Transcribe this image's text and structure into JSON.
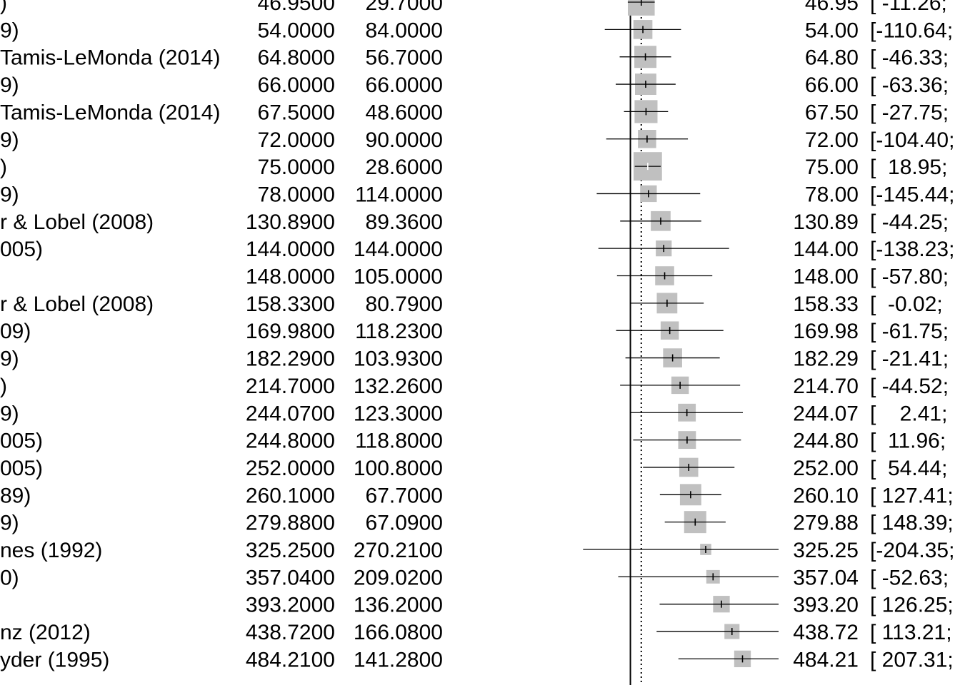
{
  "chart_data": {
    "type": "forest",
    "title": "",
    "xlabel": "",
    "ylabel": "",
    "xlim": [
      -230,
      640
    ],
    "reference_line": 0,
    "summary_line": 47,
    "colors": {
      "box": "#c0c0c0",
      "line": "#000000",
      "text": "#000000"
    },
    "rows": [
      {
        "study": ")",
        "mean": "46.9500",
        "sd": "29.7000",
        "est_label": "46.95",
        "ci_label": "[ -11.26;",
        "est": 46.95,
        "lo": -11.26,
        "hi": 105.16,
        "w": 1.3
      },
      {
        "study": "9)",
        "mean": "54.0000",
        "sd": "84.0000",
        "est_label": "54.00",
        "ci_label": "[-110.64;",
        "est": 54.0,
        "lo": -110.64,
        "hi": 218.64,
        "w": 0.8
      },
      {
        "study": "Tamis-LeMonda (2014)",
        "mean": "64.8000",
        "sd": "56.7000",
        "est_label": "64.80",
        "ci_label": "[ -46.33;",
        "est": 64.8,
        "lo": -46.33,
        "hi": 175.93,
        "w": 1.0
      },
      {
        "study": "9)",
        "mean": "66.0000",
        "sd": "66.0000",
        "est_label": "66.00",
        "ci_label": "[ -63.36;",
        "est": 66.0,
        "lo": -63.36,
        "hi": 195.36,
        "w": 0.95
      },
      {
        "study": "Tamis-LeMonda (2014)",
        "mean": "67.5000",
        "sd": "48.6000",
        "est_label": "67.50",
        "ci_label": "[ -27.75;",
        "est": 67.5,
        "lo": -27.75,
        "hi": 162.75,
        "w": 1.05
      },
      {
        "study": "9)",
        "mean": "72.0000",
        "sd": "90.0000",
        "est_label": "72.00",
        "ci_label": "[-104.40;",
        "est": 72.0,
        "lo": -104.4,
        "hi": 248.4,
        "w": 0.75
      },
      {
        "study": ")",
        "mean": "75.0000",
        "sd": "28.6000",
        "est_label": "75.00",
        "ci_label": "[  18.95;",
        "est": 75.0,
        "lo": 18.95,
        "hi": 131.05,
        "w": 1.4
      },
      {
        "study": "9)",
        "mean": "78.0000",
        "sd": "114.0000",
        "est_label": "78.00",
        "ci_label": "[-145.44;",
        "est": 78.0,
        "lo": -145.44,
        "hi": 301.44,
        "w": 0.65
      },
      {
        "study": "r & Lobel (2008)",
        "mean": "130.8900",
        "sd": "89.3600",
        "est_label": "130.89",
        "ci_label": "[ -44.25;",
        "est": 130.89,
        "lo": -44.25,
        "hi": 306.03,
        "w": 0.85
      },
      {
        "study": "005)",
        "mean": "144.0000",
        "sd": "144.0000",
        "est_label": "144.00",
        "ci_label": "[-138.23;",
        "est": 144.0,
        "lo": -138.23,
        "hi": 426.23,
        "w": 0.6
      },
      {
        "study": "",
        "mean": "148.0000",
        "sd": "105.0000",
        "est_label": "148.00",
        "ci_label": "[ -57.80;",
        "est": 148.0,
        "lo": -57.8,
        "hi": 353.8,
        "w": 0.8
      },
      {
        "study": "r & Lobel (2008)",
        "mean": "158.3300",
        "sd": "80.7900",
        "est_label": "158.33",
        "ci_label": "[  -0.02;",
        "est": 158.33,
        "lo": -0.02,
        "hi": 316.68,
        "w": 0.9
      },
      {
        "study": "09)",
        "mean": "169.9800",
        "sd": "118.2300",
        "est_label": "169.98",
        "ci_label": "[ -61.75;",
        "est": 169.98,
        "lo": -61.75,
        "hi": 401.71,
        "w": 0.75
      },
      {
        "study": "9)",
        "mean": "182.2900",
        "sd": "103.9300",
        "est_label": "182.29",
        "ci_label": "[ -21.41;",
        "est": 182.29,
        "lo": -21.41,
        "hi": 385.99,
        "w": 0.8
      },
      {
        "study": ")",
        "mean": "214.7000",
        "sd": "132.2600",
        "est_label": "214.70",
        "ci_label": "[ -44.52;",
        "est": 214.7,
        "lo": -44.52,
        "hi": 473.92,
        "w": 0.7
      },
      {
        "study": "9)",
        "mean": "244.0700",
        "sd": "123.3000",
        "est_label": "244.07",
        "ci_label": "[    2.41;",
        "est": 244.07,
        "lo": 2.41,
        "hi": 485.73,
        "w": 0.72
      },
      {
        "study": "005)",
        "mean": "244.8000",
        "sd": "118.8000",
        "est_label": "244.80",
        "ci_label": "[  11.96;",
        "est": 244.8,
        "lo": 11.96,
        "hi": 477.64,
        "w": 0.72
      },
      {
        "study": "005)",
        "mean": "252.0000",
        "sd": "100.8000",
        "est_label": "252.00",
        "ci_label": "[  54.44;",
        "est": 252.0,
        "lo": 54.44,
        "hi": 449.56,
        "w": 0.8
      },
      {
        "study": "89)",
        "mean": "260.1000",
        "sd": "67.7000",
        "est_label": "260.10",
        "ci_label": "[ 127.41;",
        "est": 260.1,
        "lo": 127.41,
        "hi": 392.79,
        "w": 0.95
      },
      {
        "study": "9)",
        "mean": "279.8800",
        "sd": "67.0900",
        "est_label": "279.88",
        "ci_label": "[ 148.39;",
        "est": 279.88,
        "lo": 148.39,
        "hi": 411.37,
        "w": 1.0
      },
      {
        "study": "nes (1992)",
        "mean": "325.2500",
        "sd": "270.2100",
        "est_label": "325.25",
        "ci_label": "[-204.35;",
        "est": 325.25,
        "lo": -204.35,
        "hi": 854.85,
        "w": 0.3
      },
      {
        "study": "0)",
        "mean": "357.0400",
        "sd": "209.0200",
        "est_label": "357.04",
        "ci_label": "[ -52.63;",
        "est": 357.04,
        "lo": -52.63,
        "hi": 766.71,
        "w": 0.45
      },
      {
        "study": "",
        "mean": "393.2000",
        "sd": "136.2000",
        "est_label": "393.20",
        "ci_label": "[ 126.25;",
        "est": 393.2,
        "lo": 126.25,
        "hi": 660.15,
        "w": 0.65
      },
      {
        "study": "nz (2012)",
        "mean": "438.7200",
        "sd": "166.0800",
        "est_label": "438.72",
        "ci_label": "[ 113.21;",
        "est": 438.72,
        "lo": 113.21,
        "hi": 764.23,
        "w": 0.55
      },
      {
        "study": "yder (1995)",
        "mean": "484.2100",
        "sd": "141.2800",
        "est_label": "484.21",
        "ci_label": "[ 207.31;",
        "est": 484.21,
        "lo": 207.31,
        "hi": 761.11,
        "w": 0.65
      }
    ]
  }
}
